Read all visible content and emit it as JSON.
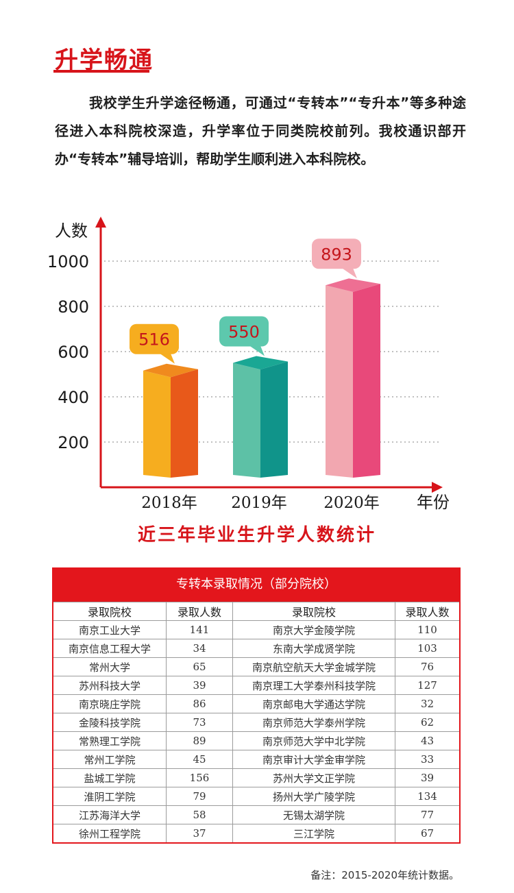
{
  "section": {
    "title": "升学畅通",
    "intro": "我校学生升学途径畅通，可通过“专转本”“专升本”等多种途径进入本科院校深造，升学率位于同类院校前列。我校通识部开办“专转本”辅导培训，帮助学生顺利进入本科院校。"
  },
  "chart_data": {
    "type": "bar",
    "title": "近三年毕业生升学人数统计",
    "xlabel": "年份",
    "ylabel": "人数",
    "categories": [
      "2018年",
      "2019年",
      "2020年"
    ],
    "values": [
      516,
      550,
      893
    ],
    "data_labels": [
      "516",
      "550",
      "893"
    ],
    "yticks": [
      "200",
      "400",
      "600",
      "800",
      "1000"
    ],
    "ylim": [
      0,
      1100
    ],
    "grid": "dotted horizontal",
    "colors": [
      {
        "front": "#f6ad1f",
        "side": "#e8591a",
        "top": "#f08a1e",
        "label_bg": "#f6ad1f",
        "label_text": "#c4161c"
      },
      {
        "front": "#5dc1a6",
        "side": "#10948a",
        "top": "#1aa794",
        "label_bg": "#5dc8ad",
        "label_text": "#c4161c"
      },
      {
        "front": "#f2a7b0",
        "side": "#e8497a",
        "top": "#ee6f93",
        "label_bg": "#f4aeb7",
        "label_text": "#c4161c"
      }
    ],
    "axis_color": "#d7141a"
  },
  "table": {
    "title": "专转本录取情况（部分院校）",
    "headers": [
      "录取院校",
      "录取人数",
      "录取院校",
      "录取人数"
    ],
    "rows": [
      [
        "南京工业大学",
        "141",
        "南京大学金陵学院",
        "110"
      ],
      [
        "南京信息工程大学",
        "34",
        "东南大学成贤学院",
        "103"
      ],
      [
        "常州大学",
        "65",
        "南京航空航天大学金城学院",
        "76"
      ],
      [
        "苏州科技大学",
        "39",
        "南京理工大学泰州科技学院",
        "127"
      ],
      [
        "南京晓庄学院",
        "86",
        "南京邮电大学通达学院",
        "32"
      ],
      [
        "金陵科技学院",
        "73",
        "南京师范大学泰州学院",
        "62"
      ],
      [
        "常熟理工学院",
        "89",
        "南京师范大学中北学院",
        "43"
      ],
      [
        "常州工学院",
        "45",
        "南京审计大学金审学院",
        "33"
      ],
      [
        "盐城工学院",
        "156",
        "苏州大学文正学院",
        "39"
      ],
      [
        "淮阴工学院",
        "79",
        "扬州大学广陵学院",
        "134"
      ],
      [
        "江苏海洋大学",
        "58",
        "无锡太湖学院",
        "77"
      ],
      [
        "徐州工程学院",
        "37",
        "三江学院",
        "67"
      ]
    ]
  },
  "footnote": "备注：2015-2020年统计数据。"
}
